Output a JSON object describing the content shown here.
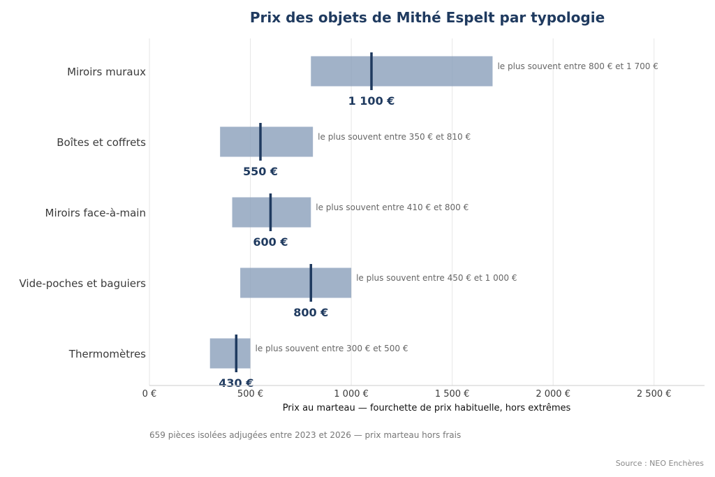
{
  "chart_data": {
    "type": "bar",
    "title": "Prix des objets de Mithé Espelt par typologie",
    "xlabel": "Prix au marteau — fourchette de prix habituelle, hors extrêmes",
    "xlim": [
      0,
      2750
    ],
    "xticks": [
      {
        "value": 0,
        "label": "0 €"
      },
      {
        "value": 500,
        "label": "500 €"
      },
      {
        "value": 1000,
        "label": "1 000 €"
      },
      {
        "value": 1500,
        "label": "1 500 €"
      },
      {
        "value": 2000,
        "label": "2 000 €"
      },
      {
        "value": 2500,
        "label": "2 500 €"
      }
    ],
    "grid": true,
    "bar_color": "#8a9fba",
    "median_color": "#1f3a5f",
    "categories": [
      {
        "name": "Miroirs muraux",
        "low": 800,
        "high": 1700,
        "median": 1100,
        "median_label": "1 100 €",
        "range_label": "le plus souvent entre 800 € et 1 700 €"
      },
      {
        "name": "Boîtes et coffrets",
        "low": 350,
        "high": 810,
        "median": 550,
        "median_label": "550 €",
        "range_label": "le plus souvent entre 350 € et 810 €"
      },
      {
        "name": "Miroirs face-à-main",
        "low": 410,
        "high": 800,
        "median": 600,
        "median_label": "600 €",
        "range_label": "le plus souvent entre 410 € et 800 €"
      },
      {
        "name": "Vide-poches et baguiers",
        "low": 450,
        "high": 1000,
        "median": 800,
        "median_label": "800 €",
        "range_label": "le plus souvent entre 450 € et 1 000 €"
      },
      {
        "name": "Thermomètres",
        "low": 300,
        "high": 500,
        "median": 430,
        "median_label": "430 €",
        "range_label": "le plus souvent entre 300 € et 500 €"
      }
    ]
  },
  "footnote": "659 pièces isolées adjugées entre 2023 et 2026 — prix marteau hors frais",
  "source": "Source : NEO Enchères"
}
